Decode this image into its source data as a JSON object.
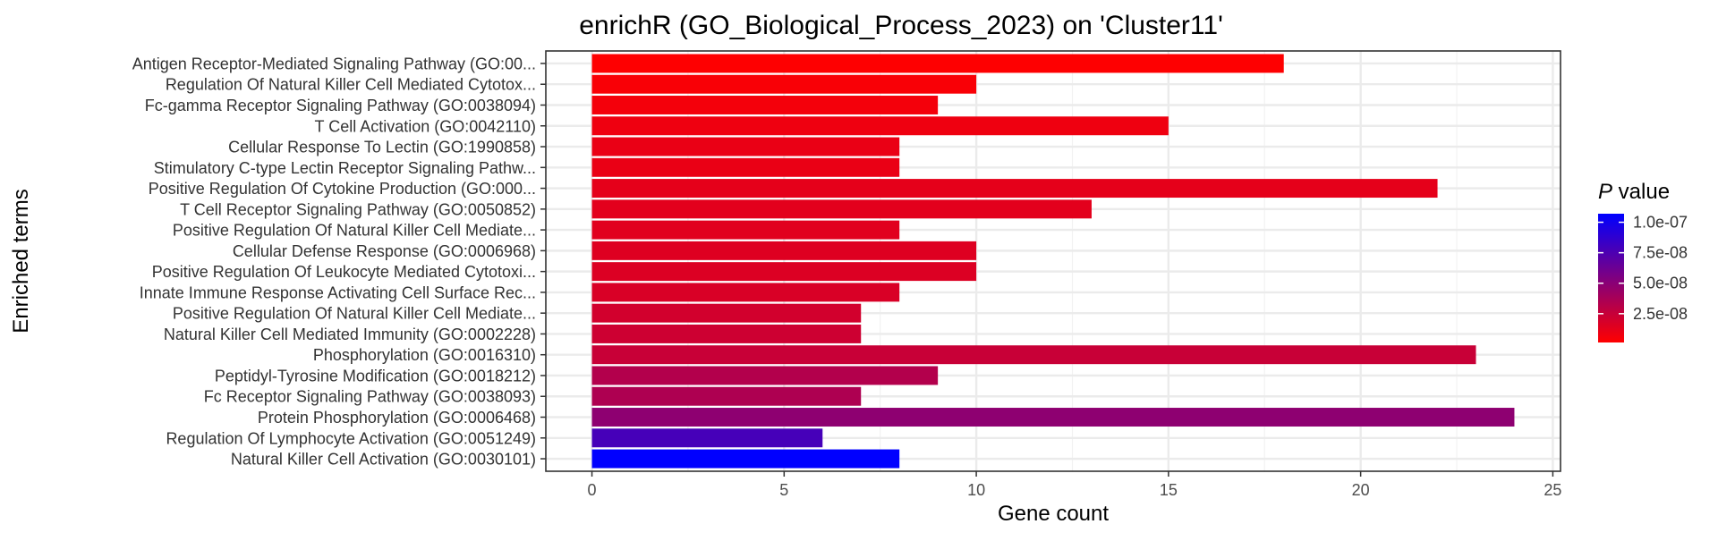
{
  "chart_data": {
    "type": "bar",
    "orientation": "horizontal",
    "title": "enrichR (GO_Biological_Process_2023) on 'Cluster11'",
    "xlabel": "Gene count",
    "ylabel": "Enriched terms",
    "xlim": [
      -1.2,
      25.2
    ],
    "xticks": [
      0,
      5,
      10,
      15,
      20,
      25
    ],
    "grid": true,
    "legend": {
      "title_italic": "P",
      "title_rest": " value",
      "placement": "right",
      "range": [
        1.4e-09,
        1.07e-07
      ],
      "color_low": "#ff0000",
      "color_high": "#0000ff",
      "ticks": [
        {
          "value": 1e-07,
          "label": "1.0e-07"
        },
        {
          "value": 7.5e-08,
          "label": "7.5e-08"
        },
        {
          "value": 5e-08,
          "label": "5.0e-08"
        },
        {
          "value": 2.5e-08,
          "label": "2.5e-08"
        }
      ]
    },
    "categories": [
      "Antigen Receptor-Mediated Signaling Pathway (GO:00...",
      "Regulation Of Natural Killer Cell Mediated Cytotox...",
      "Fc-gamma Receptor Signaling Pathway (GO:0038094)",
      "T Cell Activation (GO:0042110)",
      "Cellular Response To Lectin (GO:1990858)",
      "Stimulatory C-type Lectin Receptor Signaling Pathw...",
      "Positive Regulation Of Cytokine Production (GO:000...",
      "T Cell Receptor Signaling Pathway (GO:0050852)",
      "Positive Regulation Of Natural Killer Cell Mediate...",
      "Cellular Defense Response (GO:0006968)",
      "Positive Regulation Of Leukocyte Mediated Cytotoxi...",
      "Innate Immune Response Activating Cell Surface Rec...",
      "Positive Regulation Of Natural Killer Cell Mediate...",
      "Natural Killer Cell Mediated Immunity (GO:0002228)",
      "Phosphorylation (GO:0016310)",
      "Peptidyl-Tyrosine Modification (GO:0018212)",
      "Fc Receptor Signaling Pathway (GO:0038093)",
      "Protein Phosphorylation (GO:0006468)",
      "Regulation Of Lymphocyte Activation (GO:0051249)",
      "Natural Killer Cell Activation (GO:0030101)"
    ],
    "values": [
      18,
      10,
      9,
      15,
      8,
      8,
      22,
      13,
      8,
      10,
      10,
      8,
      7,
      7,
      23,
      9,
      7,
      24,
      6,
      8
    ],
    "pvalues": [
      2e-09,
      4e-09,
      6e-09,
      8e-09,
      1e-08,
      1e-08,
      1.2e-08,
      1.3e-08,
      1.4e-08,
      1.5e-08,
      1.6e-08,
      1.7e-08,
      2e-08,
      2.2e-08,
      2.4e-08,
      3.3e-08,
      3.5e-08,
      4.8e-08,
      7.8e-08,
      1.07e-07
    ]
  }
}
